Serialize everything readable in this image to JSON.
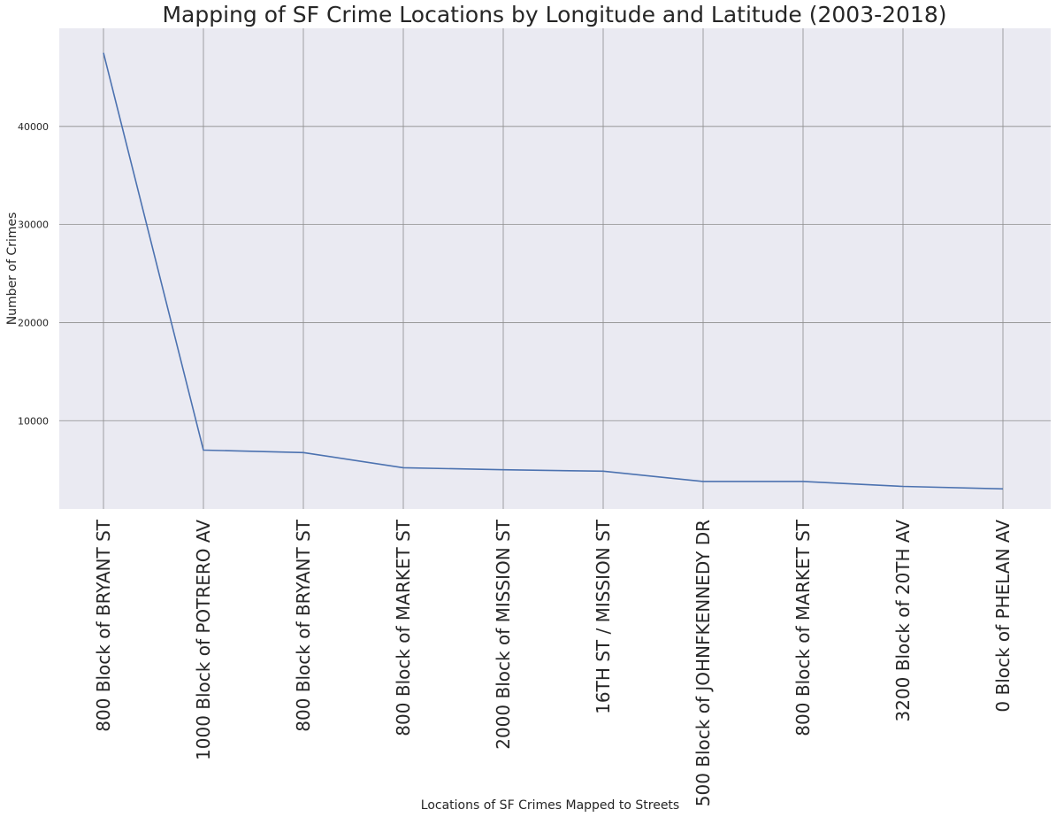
{
  "chart_data": {
    "type": "line",
    "title": "Mapping of SF Crime Locations by Longitude and Latitude (2003-2018)",
    "xlabel": "Locations of SF Crimes Mapped to Streets",
    "ylabel": "Number of Crimes",
    "categories": [
      "800 Block of BRYANT ST",
      "1000 Block of POTRERO AV",
      "800 Block of BRYANT ST",
      "800 Block of MARKET ST",
      "2000 Block of MISSION ST",
      "16TH ST / MISSION ST",
      "500 Block of JOHNFKENNEDY DR",
      "800 Block of MARKET ST",
      "3200 Block of 20TH AV",
      "0 Block of PHELAN AV"
    ],
    "series": [
      {
        "values": [
          47500,
          7000,
          6750,
          5200,
          5000,
          4850,
          3800,
          3800,
          3300,
          3050
        ]
      }
    ],
    "yticks": [
      10000,
      20000,
      30000,
      40000
    ],
    "ylim": [
      1000,
      50000
    ],
    "grid": true,
    "colors": {
      "background": "#eaeaf2",
      "grid": "#8c8c8c",
      "line": "#4c72b0",
      "text": "#262626"
    }
  }
}
